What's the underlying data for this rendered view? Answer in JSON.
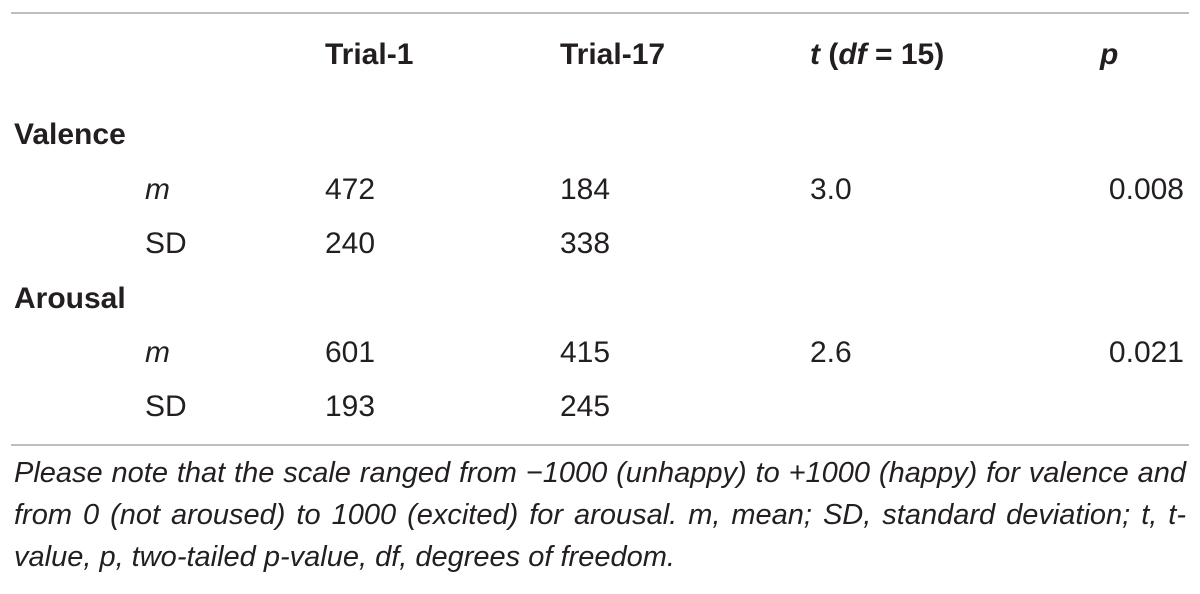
{
  "header": {
    "col1": "Trial-1",
    "col2": "Trial-17",
    "col3_t": "t",
    "col3_open": " (",
    "col3_df": "df",
    "col3_rest": " = 15)",
    "col4": "p"
  },
  "sections": [
    {
      "label": "Valence",
      "rows": [
        {
          "stat": "m",
          "trial1": "472",
          "trial17": "184",
          "t": "3.0",
          "p": "0.008"
        },
        {
          "stat": "SD",
          "trial1": "240",
          "trial17": "338",
          "t": "",
          "p": ""
        }
      ]
    },
    {
      "label": "Arousal",
      "rows": [
        {
          "stat": "m",
          "trial1": "601",
          "trial17": "415",
          "t": "2.6",
          "p": "0.021"
        },
        {
          "stat": "SD",
          "trial1": "193",
          "trial17": "245",
          "t": "",
          "p": ""
        }
      ]
    }
  ],
  "footnote": "Please note that the scale ranged from −1000 (unhappy) to +1000 (happy) for valence and from 0 (not aroused) to 1000 (excited) for arousal. m, mean; SD, standard deviation; t, t-value, p, two-tailed p-value, df, degrees of freedom."
}
